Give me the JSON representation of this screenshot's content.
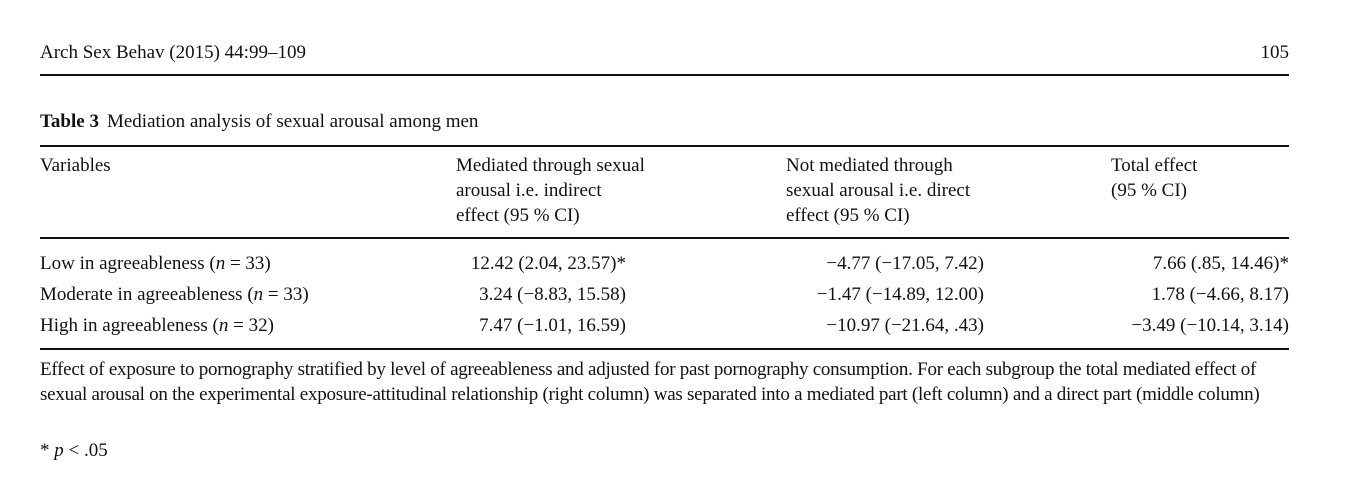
{
  "running_header": {
    "journal": "Arch Sex Behav (2015) 44:99–109",
    "page_number": "105"
  },
  "table": {
    "label": "Table 3",
    "title": "Mediation analysis of sexual arousal among men",
    "columns": [
      {
        "lines": [
          "Variables"
        ]
      },
      {
        "lines": [
          "Mediated through sexual",
          "arousal i.e. indirect",
          "effect (95 % CI)"
        ]
      },
      {
        "lines": [
          "Not mediated through",
          "sexual arousal i.e. direct",
          "effect (95 % CI)"
        ]
      },
      {
        "lines": [
          "Total effect",
          "(95 % CI)"
        ]
      }
    ],
    "rows": [
      {
        "variable_prefix": "Low in agreeableness (",
        "n_symbol": "n",
        "n_value": " = 33)",
        "indirect": "12.42 (2.04, 23.57)*",
        "direct": "−4.77 (−17.05, 7.42)",
        "total": "7.66 (.85, 14.46)*"
      },
      {
        "variable_prefix": "Moderate in agreeableness (",
        "n_symbol": "n",
        "n_value": " = 33)",
        "indirect": "3.24 (−8.83, 15.58)",
        "direct": "−1.47 (−14.89, 12.00)",
        "total": "1.78 (−4.66, 8.17)"
      },
      {
        "variable_prefix": "High in agreeableness (",
        "n_symbol": "n",
        "n_value": " = 32)",
        "indirect": "7.47 (−1.01, 16.59)",
        "direct": "−10.97 (−21.64, .43)",
        "total": "−3.49 (−10.14, 3.14)"
      }
    ],
    "footnote": "Effect of exposure to pornography stratified by level of agreeableness and adjusted for past pornography consumption. For each subgroup the total mediated effect of sexual arousal on the experimental exposure-attitudinal relationship (right column) was separated into a mediated part (left column) and a direct part (middle column)",
    "significance": {
      "prefix": "* ",
      "symbol": "p",
      "rest": " < .05"
    }
  }
}
